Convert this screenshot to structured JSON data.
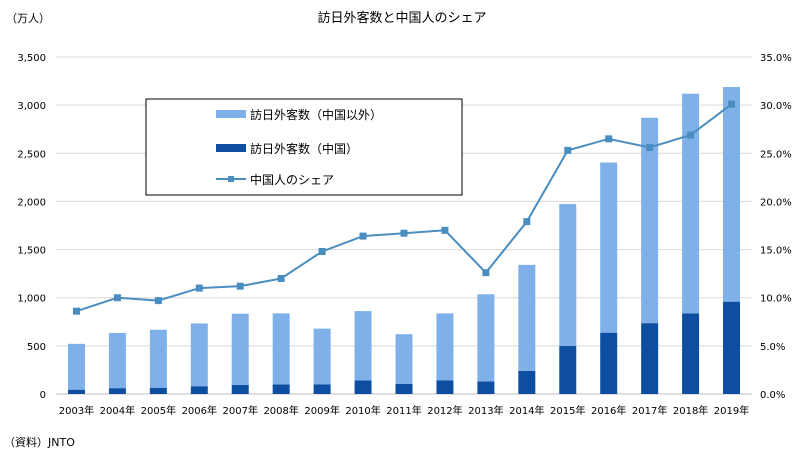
{
  "chart_data": {
    "type": "bar",
    "title": "訪日外客数と中国人のシェア",
    "ylabel": "（万人）",
    "source": "（資料）JNTO",
    "categories": [
      "2003年",
      "2004年",
      "2005年",
      "2006年",
      "2007年",
      "2008年",
      "2009年",
      "2010年",
      "2011年",
      "2012年",
      "2013年",
      "2014年",
      "2015年",
      "2016年",
      "2017年",
      "2018年",
      "2019年"
    ],
    "series": [
      {
        "name": "訪日外客数（中国以外）",
        "color": "#7fb0ea",
        "stack": true,
        "values": [
          476,
          573,
          602,
          652,
          740,
          737,
          578,
          720,
          517,
          694,
          905,
          1100,
          1474,
          1767,
          2133,
          2281,
          2229
        ]
      },
      {
        "name": "訪日外客数（中国）",
        "color": "#0d4ea1",
        "stack": true,
        "values": [
          45,
          61,
          65,
          81,
          94,
          100,
          101,
          141,
          104,
          143,
          131,
          241,
          499,
          637,
          736,
          838,
          959
        ]
      },
      {
        "name": "中国人のシェア",
        "color": "#4a8dc0",
        "axis": "right",
        "values": [
          8.6,
          10.0,
          9.7,
          11.0,
          11.2,
          12.0,
          14.8,
          16.4,
          16.7,
          17.0,
          12.6,
          17.9,
          25.3,
          26.5,
          25.6,
          26.9,
          30.1
        ]
      }
    ],
    "ylim": [
      0,
      3500
    ],
    "yticks": [
      "0",
      "500",
      "1,000",
      "1,500",
      "2,000",
      "2,500",
      "3,000",
      "3,500"
    ],
    "y2lim": [
      0,
      35
    ],
    "y2ticks": [
      "0.0%",
      "5.0%",
      "10.0%",
      "15.0%",
      "20.0%",
      "25.0%",
      "30.0%",
      "35.0%"
    ],
    "legend_position": "top-left"
  }
}
